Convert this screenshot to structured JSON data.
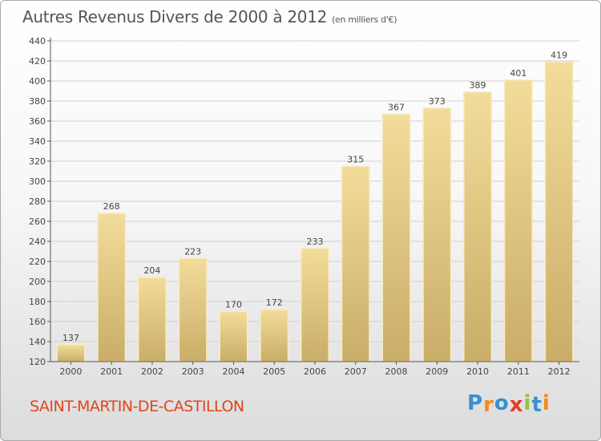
{
  "title": "Autres Revenus Divers de 2000 à 2012",
  "subtitle": "(en milliers d'€)",
  "commune": "SAINT-MARTIN-DE-CASTILLON",
  "logo": {
    "text": "Proxiti",
    "letters": [
      "P",
      "r",
      "o",
      "x",
      "i",
      "t",
      "i"
    ],
    "colors": [
      "#3a8fd0",
      "#f28c1e",
      "#3a8fd0",
      "#e23c26",
      "#8cc63e",
      "#3a8fd0",
      "#f28c1e"
    ]
  },
  "colors": {
    "bar_light": "#f3dc9a",
    "bar_dark": "#c9ad68",
    "bar_edge": "#f8ecc4",
    "grid": "#d0d0d0",
    "axis": "#555555",
    "text": "#444444",
    "commune": "#e1451d"
  },
  "chart_data": {
    "type": "bar",
    "title": "Autres Revenus Divers de 2000 à 2012",
    "subtitle": "(en milliers d'€)",
    "categories": [
      "2000",
      "2001",
      "2002",
      "2003",
      "2004",
      "2005",
      "2006",
      "2007",
      "2008",
      "2009",
      "2010",
      "2011",
      "2012"
    ],
    "values": [
      137,
      268,
      204,
      223,
      170,
      172,
      233,
      315,
      367,
      373,
      389,
      401,
      419
    ],
    "ylim": [
      120,
      440
    ],
    "yticks": [
      120,
      140,
      160,
      180,
      200,
      220,
      240,
      260,
      280,
      300,
      320,
      340,
      360,
      380,
      400,
      420,
      440
    ],
    "grid": true,
    "data_labels": true
  }
}
